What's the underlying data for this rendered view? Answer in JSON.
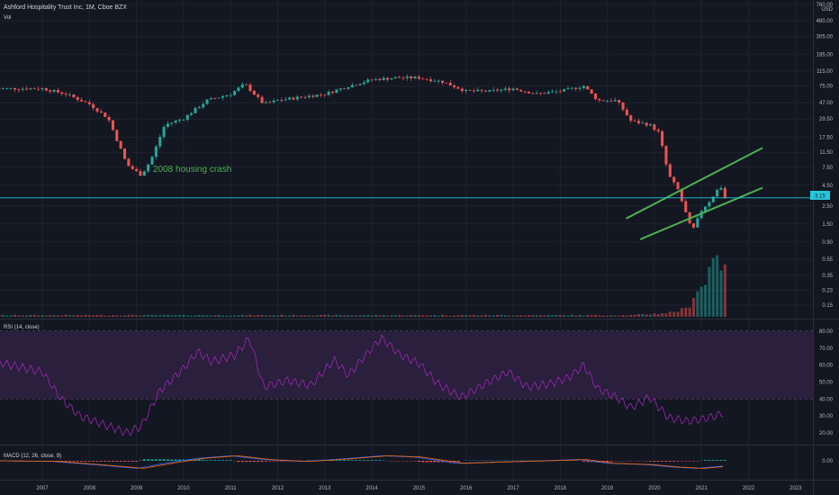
{
  "header": {
    "symbol_line": "Ashford Hospitality Trust Inc, 1M, Cboe BZX",
    "vol_label": "Vol",
    "currency": "USD"
  },
  "annotation": {
    "text": "2008 housing crash",
    "color": "#4caf50"
  },
  "last_price": {
    "label": "3.15",
    "value": 3.15,
    "color": "#26c6da"
  },
  "colors": {
    "up": "#26a69a",
    "down": "#ef5350",
    "rsi": "#9c27b0",
    "band": "#2a1f3d",
    "macd": "#2962ff",
    "signal": "#ff6d00",
    "channel": "#4caf50"
  },
  "panes": {
    "rsi": {
      "label": "RSI (14, close)",
      "ticks": [
        "80.00",
        "70.00",
        "60.00",
        "50.00",
        "40.00",
        "30.00",
        "20.00"
      ]
    },
    "macd": {
      "label": "MACD (12, 26, close, 9)",
      "ticks": [
        "0.00"
      ]
    }
  },
  "chart_data": {
    "type": "candlestick",
    "title": "Ashford Hospitality Trust Inc, 1M, Cboe BZX",
    "price_scale": "log",
    "price_ticks": [
      "760.00",
      "480.00",
      "305.00",
      "185.00",
      "115.00",
      "75.00",
      "47.00",
      "29.50",
      "17.50",
      "11.50",
      "7.50",
      "4.50",
      "2.50",
      "1.50",
      "0.90",
      "0.55",
      "0.35",
      "0.23",
      "0.15"
    ],
    "x_ticks": [
      "2007",
      "2008",
      "2009",
      "2010",
      "2011",
      "2012",
      "2013",
      "2014",
      "2015",
      "2016",
      "2017",
      "2018",
      "2019",
      "2020",
      "2021",
      "2022",
      "2023"
    ],
    "price_keypoints": [
      {
        "t": 2006.0,
        "v": 70
      },
      {
        "t": 2007.0,
        "v": 70
      },
      {
        "t": 2007.5,
        "v": 60
      },
      {
        "t": 2008.0,
        "v": 45
      },
      {
        "t": 2008.4,
        "v": 30
      },
      {
        "t": 2008.8,
        "v": 8
      },
      {
        "t": 2009.1,
        "v": 6
      },
      {
        "t": 2009.3,
        "v": 9
      },
      {
        "t": 2009.6,
        "v": 25
      },
      {
        "t": 2010.0,
        "v": 30
      },
      {
        "t": 2010.5,
        "v": 50
      },
      {
        "t": 2011.0,
        "v": 60
      },
      {
        "t": 2011.3,
        "v": 80
      },
      {
        "t": 2011.7,
        "v": 45
      },
      {
        "t": 2012.0,
        "v": 50
      },
      {
        "t": 2012.5,
        "v": 55
      },
      {
        "t": 2013.0,
        "v": 60
      },
      {
        "t": 2013.5,
        "v": 75
      },
      {
        "t": 2014.0,
        "v": 90
      },
      {
        "t": 2014.5,
        "v": 95
      },
      {
        "t": 2015.0,
        "v": 95
      },
      {
        "t": 2015.5,
        "v": 85
      },
      {
        "t": 2016.0,
        "v": 65
      },
      {
        "t": 2016.5,
        "v": 65
      },
      {
        "t": 2017.0,
        "v": 70
      },
      {
        "t": 2017.5,
        "v": 60
      },
      {
        "t": 2018.0,
        "v": 65
      },
      {
        "t": 2018.5,
        "v": 75
      },
      {
        "t": 2018.8,
        "v": 50
      },
      {
        "t": 2019.2,
        "v": 50
      },
      {
        "t": 2019.5,
        "v": 28
      },
      {
        "t": 2019.9,
        "v": 25
      },
      {
        "t": 2020.1,
        "v": 20
      },
      {
        "t": 2020.3,
        "v": 6
      },
      {
        "t": 2020.5,
        "v": 4
      },
      {
        "t": 2020.8,
        "v": 1.2
      },
      {
        "t": 2021.0,
        "v": 2.2
      },
      {
        "t": 2021.2,
        "v": 3.0
      },
      {
        "t": 2021.4,
        "v": 4.5
      },
      {
        "t": 2021.5,
        "v": 3.15
      }
    ],
    "rsi_keypoints": [
      {
        "t": 2006.0,
        "v": 62
      },
      {
        "t": 2007.0,
        "v": 56
      },
      {
        "t": 2007.4,
        "v": 40
      },
      {
        "t": 2007.8,
        "v": 30
      },
      {
        "t": 2008.3,
        "v": 25
      },
      {
        "t": 2008.8,
        "v": 20
      },
      {
        "t": 2009.1,
        "v": 24
      },
      {
        "t": 2009.5,
        "v": 45
      },
      {
        "t": 2010.0,
        "v": 58
      },
      {
        "t": 2010.3,
        "v": 68
      },
      {
        "t": 2010.6,
        "v": 62
      },
      {
        "t": 2011.1,
        "v": 66
      },
      {
        "t": 2011.4,
        "v": 76
      },
      {
        "t": 2011.7,
        "v": 47
      },
      {
        "t": 2012.2,
        "v": 51
      },
      {
        "t": 2012.7,
        "v": 48
      },
      {
        "t": 2013.2,
        "v": 63
      },
      {
        "t": 2013.5,
        "v": 54
      },
      {
        "t": 2013.9,
        "v": 67
      },
      {
        "t": 2014.2,
        "v": 76
      },
      {
        "t": 2014.6,
        "v": 66
      },
      {
        "t": 2015.0,
        "v": 61
      },
      {
        "t": 2015.4,
        "v": 49
      },
      {
        "t": 2015.9,
        "v": 41
      },
      {
        "t": 2016.4,
        "v": 49
      },
      {
        "t": 2016.9,
        "v": 56
      },
      {
        "t": 2017.3,
        "v": 47
      },
      {
        "t": 2017.8,
        "v": 49
      },
      {
        "t": 2018.2,
        "v": 53
      },
      {
        "t": 2018.5,
        "v": 60
      },
      {
        "t": 2018.8,
        "v": 46
      },
      {
        "t": 2019.2,
        "v": 41
      },
      {
        "t": 2019.5,
        "v": 35
      },
      {
        "t": 2019.9,
        "v": 41
      },
      {
        "t": 2020.3,
        "v": 29
      },
      {
        "t": 2020.7,
        "v": 27
      },
      {
        "t": 2021.0,
        "v": 28
      },
      {
        "t": 2021.3,
        "v": 30
      },
      {
        "t": 2021.5,
        "v": 32
      }
    ],
    "macd_keypoints": [
      {
        "t": 2006.0,
        "v": 0
      },
      {
        "t": 2007.2,
        "v": -0.5
      },
      {
        "t": 2008.4,
        "v": -4
      },
      {
        "t": 2009.0,
        "v": -6
      },
      {
        "t": 2009.6,
        "v": -2
      },
      {
        "t": 2010.3,
        "v": 2
      },
      {
        "t": 2011.0,
        "v": 4
      },
      {
        "t": 2011.7,
        "v": 1
      },
      {
        "t": 2012.5,
        "v": -0.5
      },
      {
        "t": 2013.2,
        "v": 1
      },
      {
        "t": 2014.2,
        "v": 4
      },
      {
        "t": 2014.9,
        "v": 3
      },
      {
        "t": 2015.8,
        "v": -2
      },
      {
        "t": 2016.6,
        "v": -1
      },
      {
        "t": 2017.6,
        "v": 0
      },
      {
        "t": 2018.4,
        "v": 1
      },
      {
        "t": 2019.0,
        "v": -2
      },
      {
        "t": 2019.8,
        "v": -3
      },
      {
        "t": 2020.4,
        "v": -5
      },
      {
        "t": 2020.9,
        "v": -6
      },
      {
        "t": 2021.5,
        "v": -4
      }
    ],
    "volume_keypoints": [
      {
        "t": 2006.0,
        "v": 0.02
      },
      {
        "t": 2019.5,
        "v": 0.02
      },
      {
        "t": 2020.3,
        "v": 0.05
      },
      {
        "t": 2020.7,
        "v": 0.1
      },
      {
        "t": 2020.9,
        "v": 0.35
      },
      {
        "t": 2021.1,
        "v": 0.4
      },
      {
        "t": 2021.3,
        "v": 1.0
      },
      {
        "t": 2021.5,
        "v": 0.5
      }
    ],
    "channel_lines": [
      {
        "from": {
          "t": 2019.4,
          "v": 1.75
        },
        "to": {
          "t": 2022.3,
          "v": 13
        }
      },
      {
        "from": {
          "t": 2019.7,
          "v": 0.97
        },
        "to": {
          "t": 2022.3,
          "v": 4.2
        }
      }
    ]
  }
}
